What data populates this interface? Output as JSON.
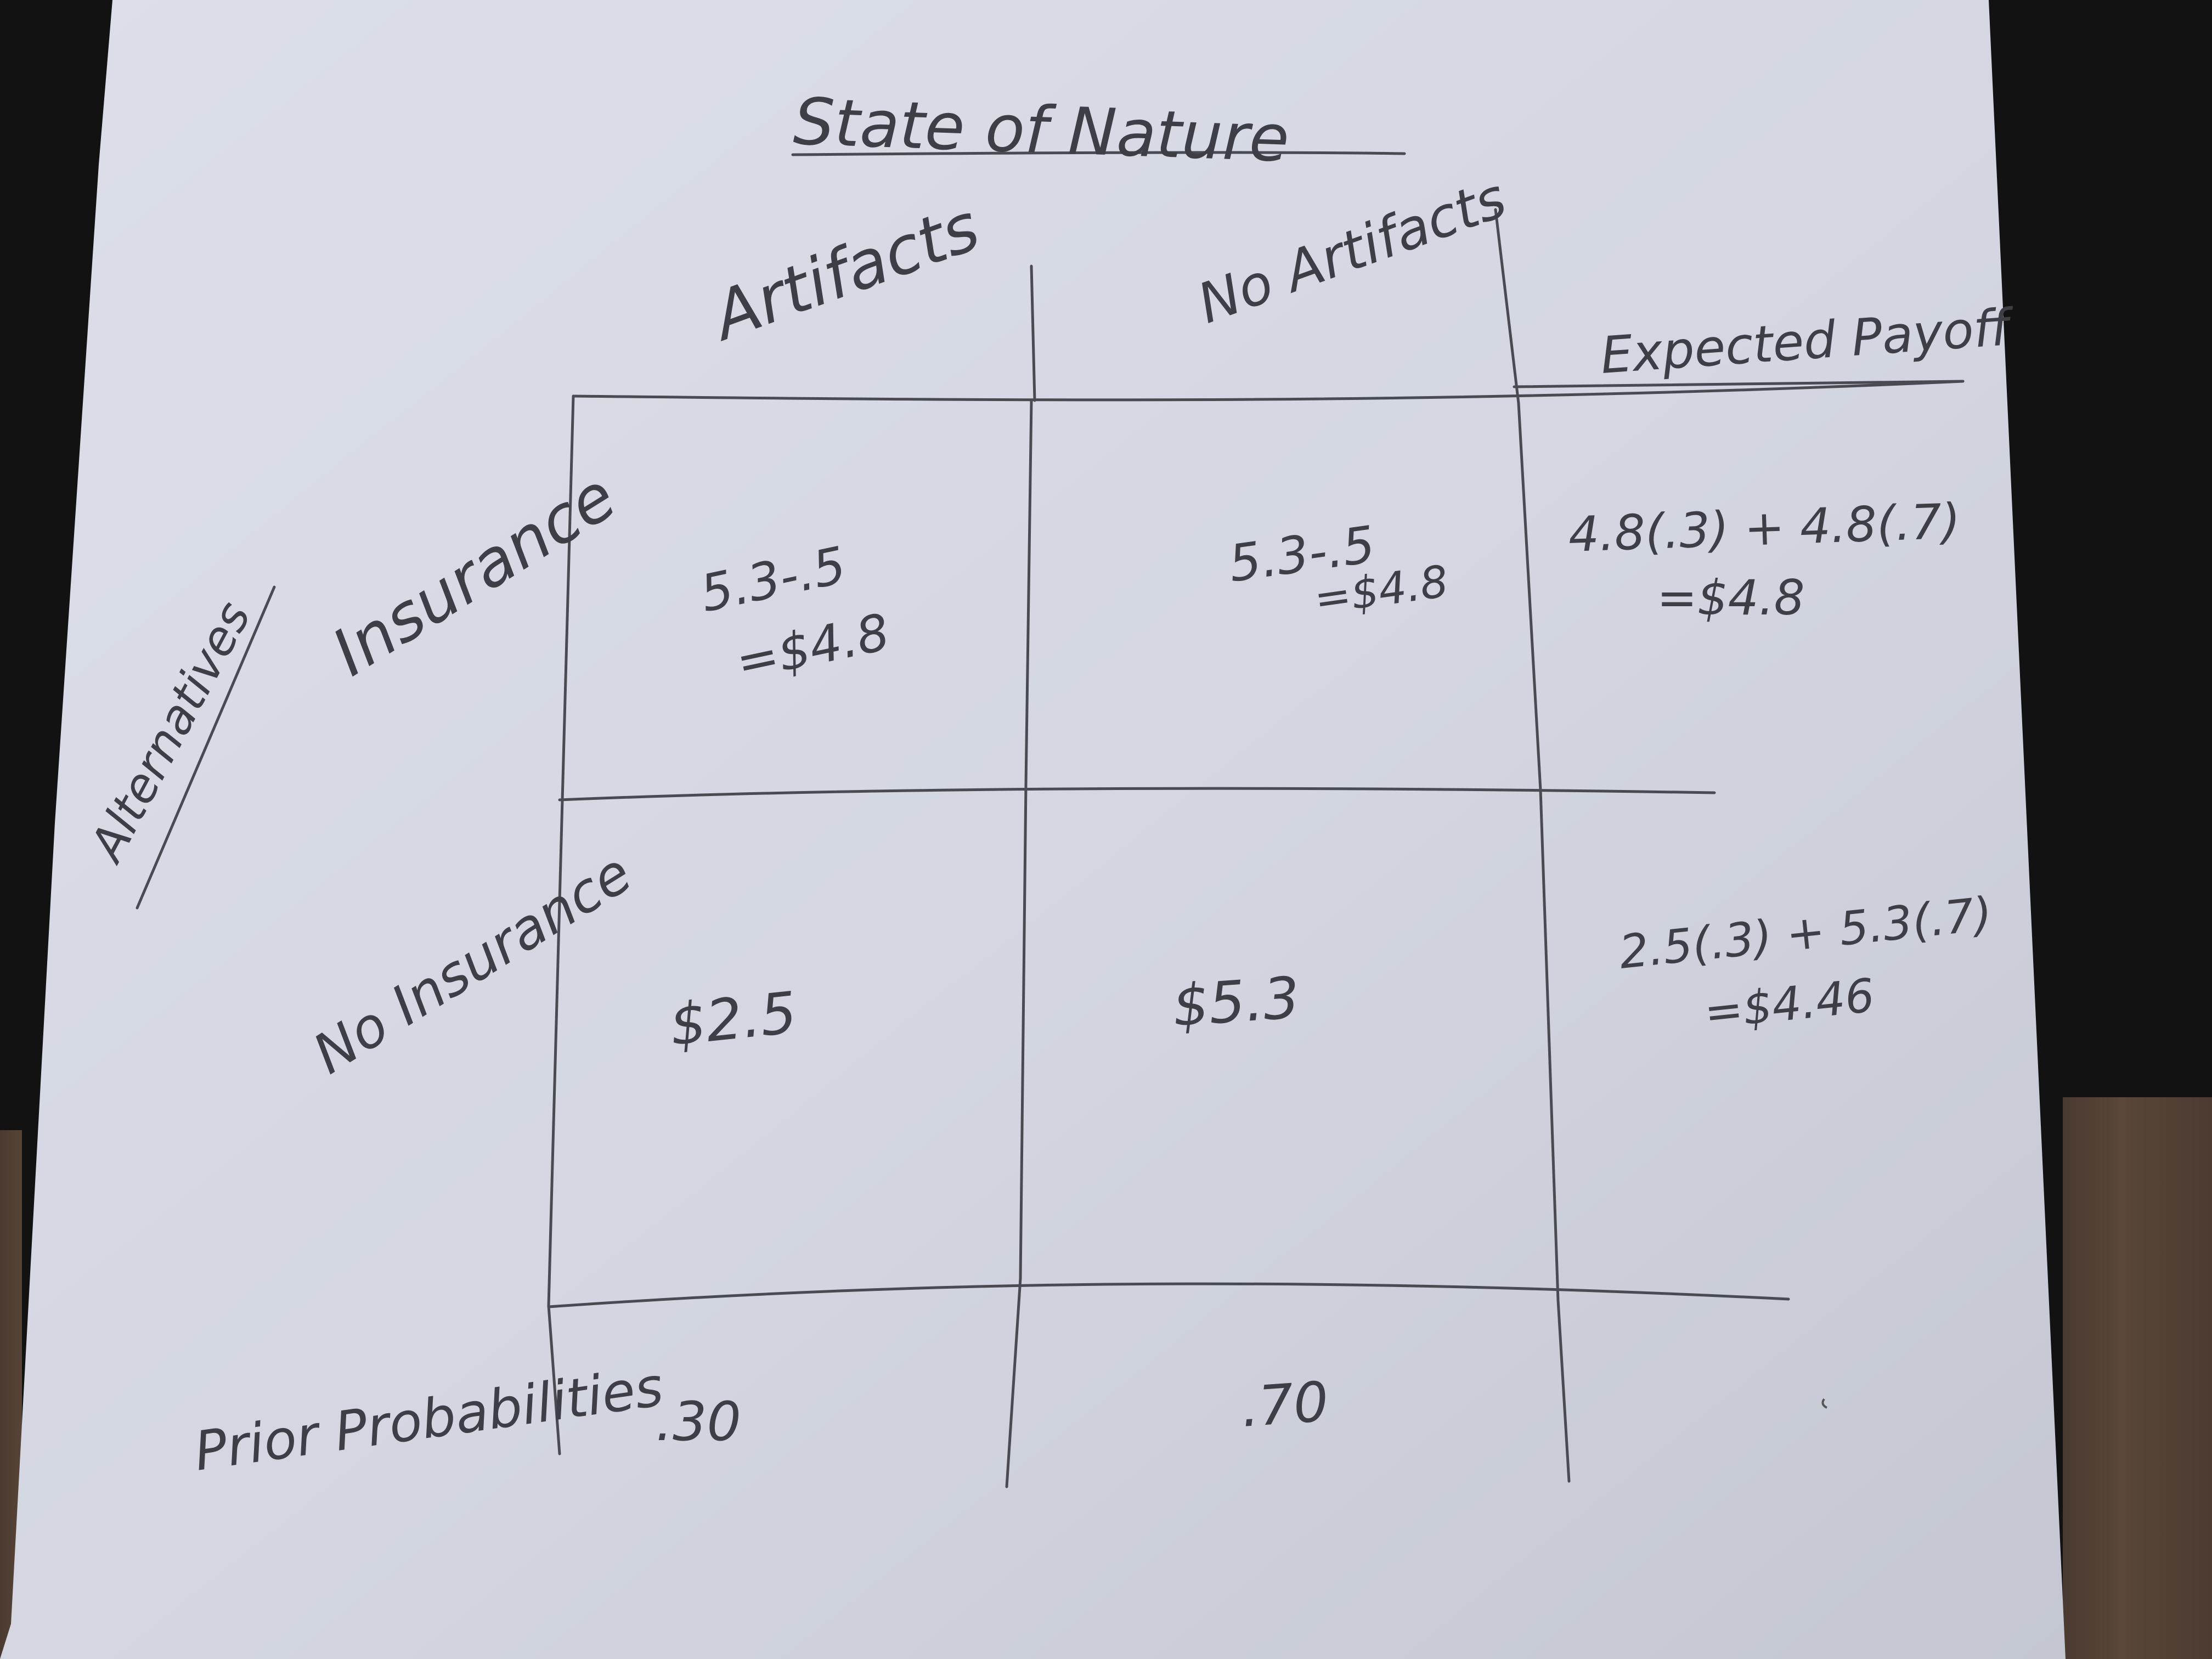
{
  "sheet": {
    "title": "State of Nature",
    "alternatives_label": "Alternatives",
    "states": [
      "Artifacts",
      "No Artifacts"
    ],
    "expected_payoff_label": "Expected Payoff",
    "rows": [
      {
        "label": "Insurance",
        "cells": [
          [
            "5.3-.5",
            "=$4.8"
          ],
          [
            "5.3-.5",
            "=$4.8"
          ]
        ],
        "expected": [
          "4.8(.3) + 4.8(.7)",
          "=$4.8"
        ]
      },
      {
        "label": "No Insurance",
        "cells": [
          [
            "$2.5"
          ],
          [
            "$5.3"
          ]
        ],
        "expected": [
          "2.5(.3) + 5.3(.7)",
          "=$4.46"
        ]
      }
    ],
    "prior_probabilities_label": "Prior Probabilities",
    "probabilities": [
      ".30",
      ".70"
    ]
  },
  "colors": {
    "background": "#121212",
    "paper": "#d6d9e4",
    "pencil": "#3e3e46",
    "wood": "#4f3e33"
  }
}
